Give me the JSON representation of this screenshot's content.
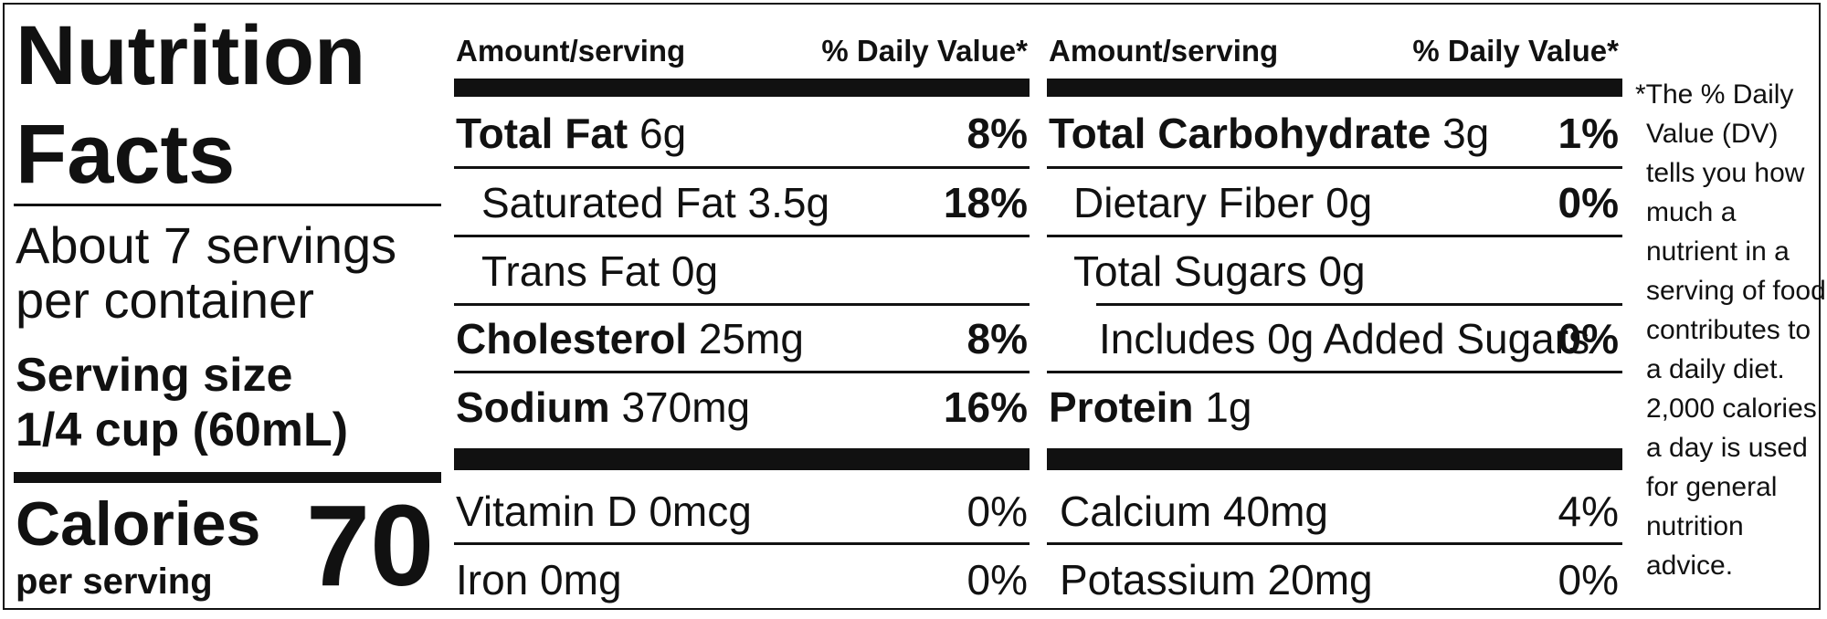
{
  "title": {
    "line1": "Nutrition",
    "line2": "Facts"
  },
  "servings": {
    "line1": "About 7 servings",
    "line2": "per container"
  },
  "serving_size": {
    "label": "Serving size",
    "value": "1/4 cup (60mL)"
  },
  "calories": {
    "label": "Calories",
    "sub": "per serving",
    "value": "70"
  },
  "headers": {
    "amount": "Amount/serving",
    "dv": "% Daily Value*"
  },
  "left_rows": [
    {
      "name": "Total Fat",
      "amount": "6g",
      "dv": "8%"
    },
    {
      "name": "Saturated Fat 3.5g",
      "dv": "18%"
    },
    {
      "name": "Trans Fat 0g",
      "dv": ""
    },
    {
      "name": "Cholesterol",
      "amount": "25mg",
      "dv": "8%"
    },
    {
      "name": "Sodium",
      "amount": "370mg",
      "dv": "16%"
    }
  ],
  "right_rows": [
    {
      "name": "Total Carbohydrate",
      "amount": "3g",
      "dv": "1%"
    },
    {
      "name": "Dietary Fiber 0g",
      "dv": "0%"
    },
    {
      "name": "Total Sugars 0g",
      "dv": ""
    },
    {
      "name": "Includes 0g Added Sugars",
      "dv": "0%"
    },
    {
      "name": "Protein",
      "amount": "1g",
      "dv": ""
    }
  ],
  "vitamins": [
    {
      "name": "Vitamin D 0mcg",
      "dv": "0%"
    },
    {
      "name": "Iron 0mg",
      "dv": "0%"
    },
    {
      "name": "Calcium 40mg",
      "dv": "4%"
    },
    {
      "name": "Potassium 20mg",
      "dv": "0%"
    }
  ],
  "footnote": [
    "*The % Daily",
    "Value (DV)",
    "tells you how",
    "much a",
    "nutrient in a",
    "serving of food",
    "contributes to",
    "a daily diet.",
    "2,000 calories",
    "a day is used",
    "for general",
    "nutrition",
    "advice."
  ]
}
